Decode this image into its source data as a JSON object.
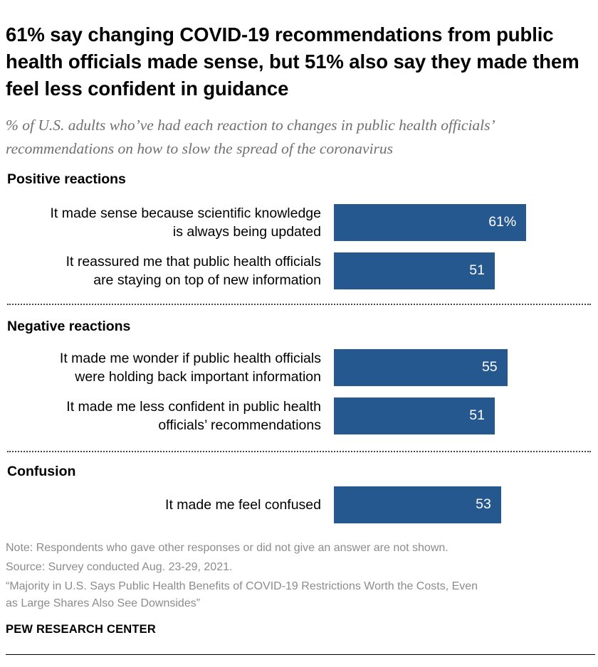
{
  "header": {
    "title": "61% say changing COVID-19 recommendations from public health officials made sense, but 51% also say they made them feel less confident in guidance",
    "subtitle": "% of U.S. adults who’ve had each reaction to changes in public health officials’ recommendations on how to slow the spread of the coronavirus"
  },
  "chart_data": {
    "type": "bar",
    "orientation": "horizontal",
    "bar_color": "#265890",
    "value_unit": "%",
    "xlim": [
      0,
      100
    ],
    "grid": false,
    "groups": [
      {
        "name": "Positive reactions",
        "items": [
          {
            "label_lines": [
              "It made sense because scientific knowledge",
              "is always being updated"
            ],
            "value": 61,
            "display": "61%"
          },
          {
            "label_lines": [
              "It reassured me that public health officials",
              "are staying on top of new information"
            ],
            "value": 51,
            "display": "51"
          }
        ]
      },
      {
        "name": "Negative reactions",
        "items": [
          {
            "label_lines": [
              "It made me wonder if public health officials",
              "were holding back important information"
            ],
            "value": 55,
            "display": "55"
          },
          {
            "label_lines": [
              "It made me less confident in public health",
              "officials’ recommendations"
            ],
            "value": 51,
            "display": "51"
          }
        ]
      },
      {
        "name": "Confusion",
        "items": [
          {
            "label_lines": [
              "It made me feel confused"
            ],
            "value": 53,
            "display": "53"
          }
        ]
      }
    ]
  },
  "footer": {
    "note": "Note: Respondents who gave other responses or did not give an answer are not shown.",
    "source": "Source: Survey conducted Aug. 23-29, 2021.",
    "report_line1": "“Majority in U.S. Says Public Health Benefits of COVID-19 Restrictions Worth the Costs, Even",
    "report_line2": "as Large Shares Also See Downsides”",
    "brand": "PEW RESEARCH CENTER"
  }
}
